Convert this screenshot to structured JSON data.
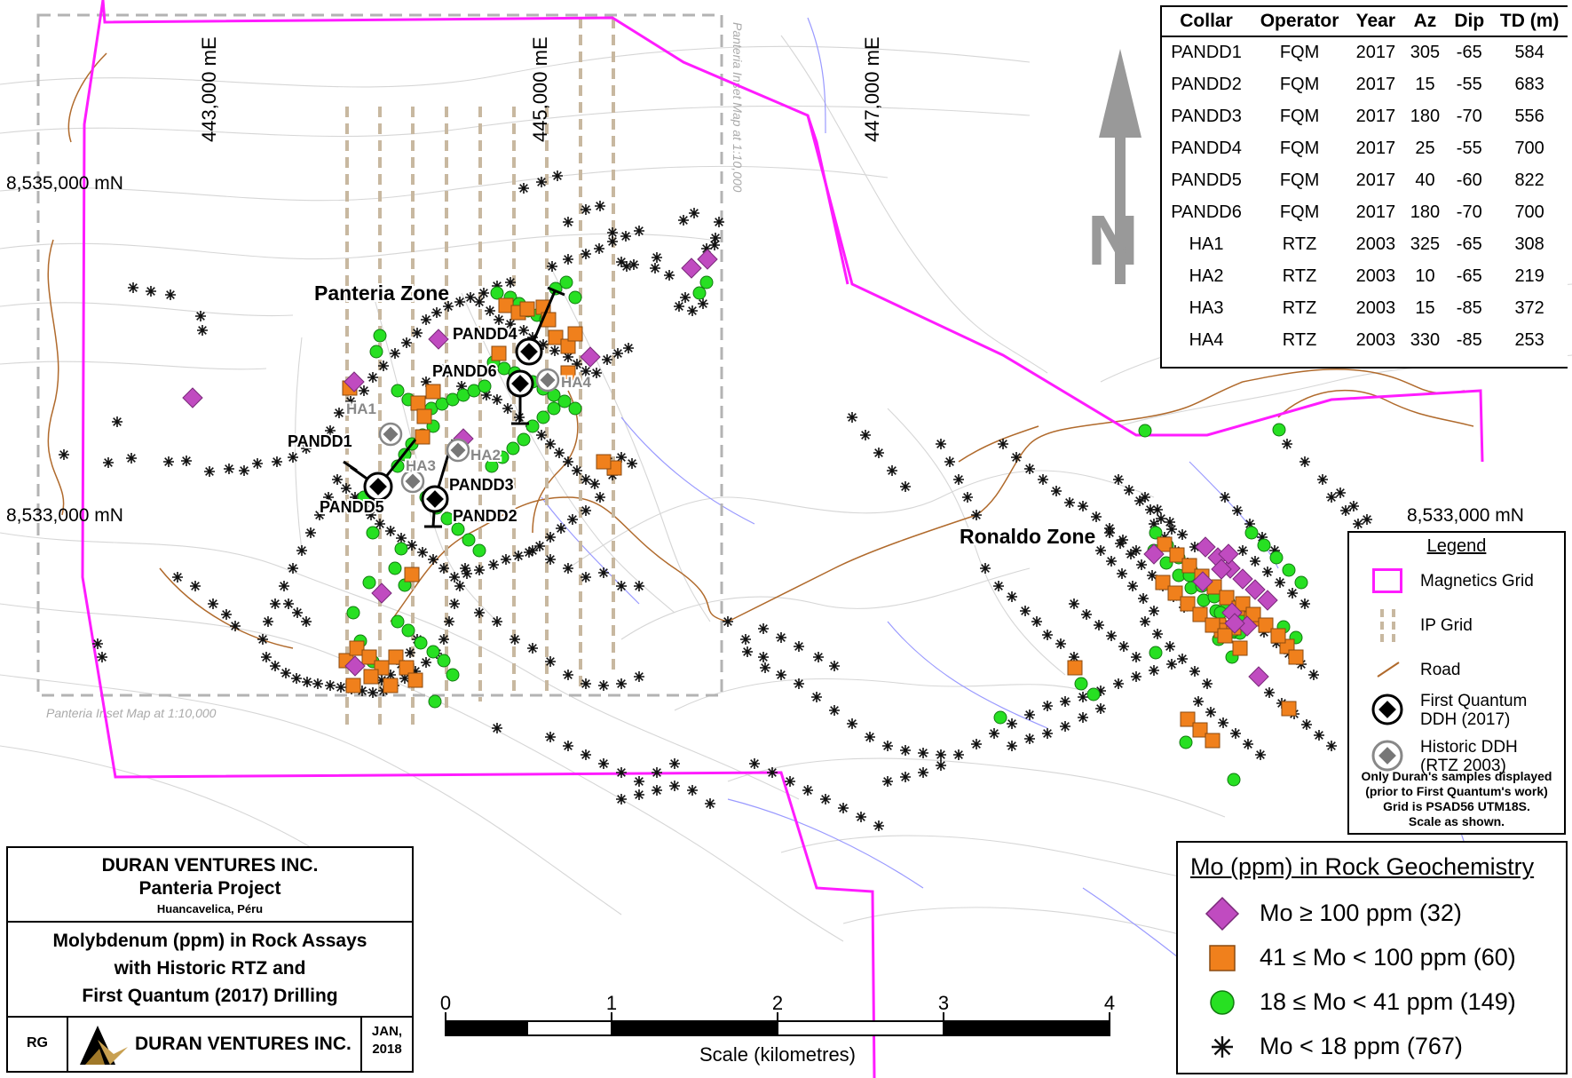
{
  "map": {
    "easting_labels": [
      "443,000 mE",
      "445,000 mE",
      "447,000 mE"
    ],
    "northing_labels": [
      "8,535,000 mN",
      "8,533,000 mN",
      "8,533,000 mN"
    ],
    "inset_label": "Panteria Inset Map at 1:10,000",
    "zones": [
      "Panteria Zone",
      "Ronaldo Zone"
    ],
    "drill_labels": {
      "pandd1": "PANDD1",
      "pandd2": "PANDD2",
      "pandd3": "PANDD3",
      "pandd4": "PANDD4",
      "pandd5": "PANDD5",
      "pandd6": "PANDD6",
      "ha1": "HA1",
      "ha2": "HA2",
      "ha3": "HA3",
      "ha4": "HA4"
    },
    "north_letter": "N",
    "colors": {
      "magnetics_grid": "#ff1cff",
      "ip_grid": "#c8b8a0",
      "road": "#b06a2c",
      "mo_high": "#c04bc0",
      "mo_mid": "#f0801c",
      "mo_low": "#27e022",
      "contour": "#d4d4d4",
      "stream": "#9a9aff"
    }
  },
  "collar_table": {
    "headers": [
      "Collar",
      "Operator",
      "Year",
      "Az",
      "Dip",
      "TD (m)"
    ],
    "rows": [
      [
        "PANDD1",
        "FQM",
        "2017",
        "305",
        "-65",
        "584"
      ],
      [
        "PANDD2",
        "FQM",
        "2017",
        "15",
        "-55",
        "683"
      ],
      [
        "PANDD3",
        "FQM",
        "2017",
        "180",
        "-70",
        "556"
      ],
      [
        "PANDD4",
        "FQM",
        "2017",
        "25",
        "-55",
        "700"
      ],
      [
        "PANDD5",
        "FQM",
        "2017",
        "40",
        "-60",
        "822"
      ],
      [
        "PANDD6",
        "FQM",
        "2017",
        "180",
        "-70",
        "700"
      ],
      [
        "HA1",
        "RTZ",
        "2003",
        "325",
        "-65",
        "308"
      ],
      [
        "HA2",
        "RTZ",
        "2003",
        "10",
        "-65",
        "219"
      ],
      [
        "HA3",
        "RTZ",
        "2003",
        "15",
        "-85",
        "372"
      ],
      [
        "HA4",
        "RTZ",
        "2003",
        "330",
        "-85",
        "253"
      ]
    ]
  },
  "legend": {
    "title": "Legend",
    "items": {
      "magnetics": "Magnetics Grid",
      "ip": "IP Grid",
      "road": "Road",
      "fq_line1": "First Quantum",
      "fq_line2": "DDH (2017)",
      "hist_line1": "Historic DDH",
      "hist_line2": "(RTZ 2003)"
    },
    "notes": [
      "Only Duran's samples displayed",
      "(prior to First Quantum's work)",
      "Grid is PSAD56 UTM18S.",
      "Scale as shown."
    ]
  },
  "geochem_legend": {
    "title": "Mo (ppm) in Rock Geochemistry",
    "items": [
      "Mo ≥ 100 ppm (32)",
      "41 ≤ Mo < 100 ppm (60)",
      "18 ≤ Mo < 41 ppm (149)",
      "Mo < 18 ppm (767)"
    ]
  },
  "title_block": {
    "company": "DURAN VENTURES INC.",
    "project": "Panteria Project",
    "location": "Huancavelica, Péru",
    "map_title_1": "Molybdenum (ppm) in Rock Assays",
    "map_title_2": "with Historic RTZ and",
    "map_title_3": "First Quantum (2017) Drilling",
    "author": "RG",
    "logo_text": "DURAN VENTURES INC.",
    "date_1": "JAN,",
    "date_2": "2018"
  },
  "scale_bar": {
    "ticks": [
      "0",
      "1",
      "2",
      "3",
      "4"
    ],
    "label": "Scale (kilometres)"
  }
}
